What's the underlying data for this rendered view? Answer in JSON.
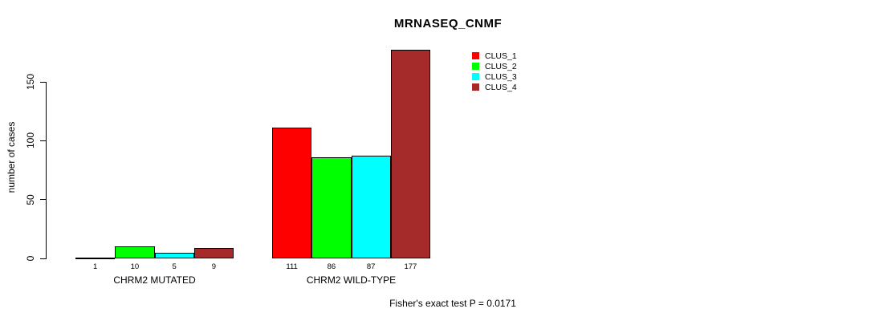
{
  "chart_data": {
    "type": "bar",
    "title": "MRNASEQ_CNMF",
    "ylabel": "number of cases",
    "xlabel": "",
    "categories": [
      "CHRM2 MUTATED",
      "CHRM2 WILD-TYPE"
    ],
    "series": [
      {
        "name": "CLUS_1",
        "color": "#FF0000",
        "values": [
          1,
          111
        ]
      },
      {
        "name": "CLUS_2",
        "color": "#00FF00",
        "values": [
          10,
          86
        ]
      },
      {
        "name": "CLUS_3",
        "color": "#00FFFF",
        "values": [
          5,
          87
        ]
      },
      {
        "name": "CLUS_4",
        "color": "#A52A2A",
        "values": [
          9,
          177
        ]
      }
    ],
    "yticks": [
      0,
      50,
      100,
      150
    ],
    "ylim": [
      0,
      150
    ],
    "bar_value_labels": true,
    "bar_border_color": "#000000",
    "annotation": "Fisher's exact test P = 0.0171",
    "legend_position": "top-right",
    "grid": false,
    "background": "#FFFFFF"
  }
}
